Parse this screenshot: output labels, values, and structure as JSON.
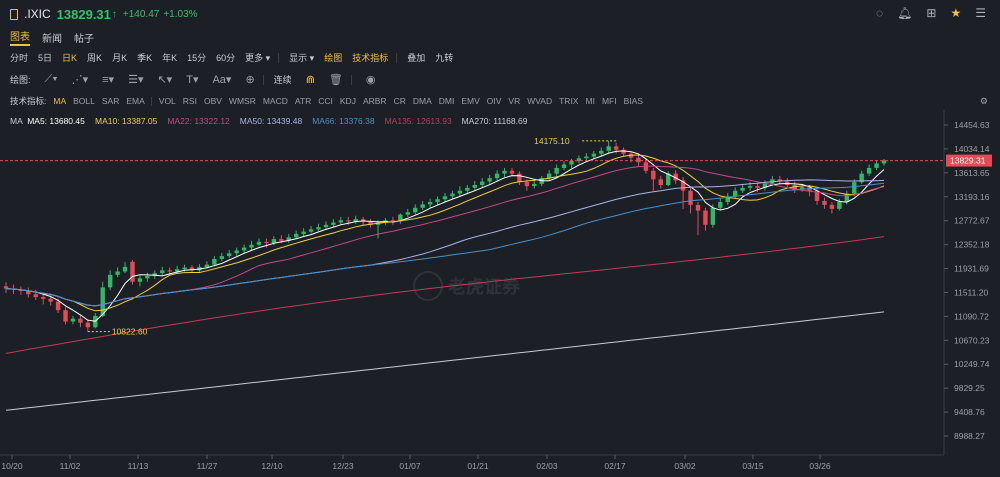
{
  "header": {
    "symbol": ".IXIC",
    "price": "13829.31",
    "arrow": "↑",
    "change": "+140.47",
    "change_pct": "+1.03%",
    "right_icons": [
      "settings-icon",
      "bell-icon",
      "grid-icon",
      "star-icon",
      "list-icon"
    ]
  },
  "tabs": [
    {
      "label": "图表",
      "active": true
    },
    {
      "label": "新闻",
      "active": false
    },
    {
      "label": "帖子",
      "active": false
    }
  ],
  "periods": [
    {
      "label": "分时",
      "active": false
    },
    {
      "label": "5日",
      "active": false
    },
    {
      "label": "日K",
      "active": true
    },
    {
      "label": "周K",
      "active": false
    },
    {
      "label": "月K",
      "active": false
    },
    {
      "label": "季K",
      "active": false
    },
    {
      "label": "年K",
      "active": false
    },
    {
      "label": "15分",
      "active": false
    },
    {
      "label": "60分",
      "active": false
    },
    {
      "label": "更多 ▾",
      "active": false
    }
  ],
  "period_extras": [
    {
      "label": "显示 ▾",
      "yellow": false
    },
    {
      "label": "绘图",
      "yellow": true
    },
    {
      "label": "技术指标",
      "yellow": true
    },
    {
      "label": "叠加",
      "yellow": false
    },
    {
      "label": "九转",
      "yellow": false
    }
  ],
  "drawbar": {
    "label": "绘图:",
    "connect_label": "连续"
  },
  "indicators": {
    "label": "技术指标:",
    "items": [
      "MA",
      "BOLL",
      "SAR",
      "EMA",
      "VOL",
      "RSI",
      "OBV",
      "WMSR",
      "MACD",
      "ATR",
      "CCI",
      "KDJ",
      "ARBR",
      "CR",
      "DMA",
      "DMI",
      "EMV",
      "OIV",
      "VR",
      "WVAD",
      "TRIX",
      "MI",
      "MFI",
      "BIAS"
    ],
    "active": "MA"
  },
  "chart_data": {
    "type": "candlestick",
    "ma_legend": [
      {
        "label": "MA",
        "value": "",
        "color": "#c9ccd2"
      },
      {
        "label": "MA5:",
        "value": "13680.45",
        "color": "#ffffff"
      },
      {
        "label": "MA10:",
        "value": "13387.05",
        "color": "#f0d040"
      },
      {
        "label": "MA22:",
        "value": "13322.12",
        "color": "#c24a8a"
      },
      {
        "label": "MA50:",
        "value": "13439.48",
        "color": "#a9b4e8"
      },
      {
        "label": "MA66:",
        "value": "13376.38",
        "color": "#4a90c8"
      },
      {
        "label": "MA135:",
        "value": "12613.93",
        "color": "#c23a5a"
      },
      {
        "label": "MA270:",
        "value": "11168.69",
        "color": "#c9ccd2"
      }
    ],
    "y_ticks": [
      "14454.63",
      "14034.14",
      "13613.65",
      "13193.16",
      "12772.67",
      "12352.18",
      "11931.69",
      "11511.20",
      "11090.72",
      "10670.23",
      "10249.74",
      "9829.25",
      "9408.76",
      "8988.27"
    ],
    "ylim": [
      8988.27,
      14454.63
    ],
    "x_ticks": [
      "10/20",
      "11/02",
      "11/13",
      "11/27",
      "12/10",
      "12/23",
      "01/07",
      "01/21",
      "02/03",
      "02/17",
      "03/02",
      "03/15",
      "03/26"
    ],
    "last_price": "13829.31",
    "high_label": "14175.10",
    "low_label": "10822.60",
    "watermark": "老虎证券",
    "candles": [
      [
        11620,
        11580,
        11690,
        11500
      ],
      [
        11580,
        11560,
        11650,
        11480
      ],
      [
        11560,
        11540,
        11620,
        11470
      ],
      [
        11540,
        11480,
        11600,
        11420
      ],
      [
        11480,
        11430,
        11560,
        11380
      ],
      [
        11430,
        11400,
        11500,
        11300
      ],
      [
        11400,
        11350,
        11460,
        11280
      ],
      [
        11350,
        11200,
        11400,
        11150
      ],
      [
        11200,
        11000,
        11250,
        10950
      ],
      [
        11000,
        11050,
        11100,
        10950
      ],
      [
        11050,
        10980,
        11120,
        10900
      ],
      [
        10980,
        10900,
        11020,
        10822
      ],
      [
        10900,
        11100,
        11150,
        10880
      ],
      [
        11100,
        11600,
        11700,
        11080
      ],
      [
        11600,
        11820,
        11900,
        11550
      ],
      [
        11820,
        11880,
        11950,
        11780
      ],
      [
        11880,
        11960,
        12050,
        11850
      ],
      [
        12050,
        11700,
        12080,
        11650
      ],
      [
        11700,
        11760,
        11820,
        11620
      ],
      [
        11760,
        11800,
        11860,
        11700
      ],
      [
        11800,
        11850,
        11900,
        11750
      ],
      [
        11850,
        11900,
        11960,
        11800
      ],
      [
        11900,
        11880,
        11950,
        11820
      ],
      [
        11880,
        11920,
        11980,
        11840
      ],
      [
        11920,
        11950,
        12000,
        11880
      ],
      [
        11950,
        11900,
        11990,
        11860
      ],
      [
        11900,
        11960,
        12010,
        11870
      ],
      [
        11960,
        12000,
        12060,
        11930
      ],
      [
        12000,
        12100,
        12150,
        11980
      ],
      [
        12100,
        12150,
        12210,
        12060
      ],
      [
        12150,
        12200,
        12260,
        12120
      ],
      [
        12200,
        12250,
        12300,
        12150
      ],
      [
        12250,
        12300,
        12350,
        12200
      ],
      [
        12300,
        12350,
        12420,
        12250
      ],
      [
        12350,
        12400,
        12460,
        12320
      ],
      [
        12400,
        12380,
        12460,
        12300
      ],
      [
        12380,
        12450,
        12500,
        12340
      ],
      [
        12450,
        12420,
        12520,
        12380
      ],
      [
        12420,
        12480,
        12540,
        12380
      ],
      [
        12480,
        12540,
        12600,
        12450
      ],
      [
        12540,
        12580,
        12640,
        12500
      ],
      [
        12580,
        12620,
        12680,
        12550
      ],
      [
        12620,
        12660,
        12720,
        12590
      ],
      [
        12660,
        12700,
        12760,
        12620
      ],
      [
        12700,
        12740,
        12800,
        12660
      ],
      [
        12740,
        12780,
        12840,
        12700
      ],
      [
        12780,
        12760,
        12840,
        12700
      ],
      [
        12760,
        12800,
        12860,
        12720
      ],
      [
        12800,
        12760,
        12840,
        12700
      ],
      [
        12760,
        12700,
        12800,
        12650
      ],
      [
        12700,
        12740,
        12780,
        12460
      ],
      [
        12740,
        12780,
        12820,
        12700
      ],
      [
        12780,
        12760,
        12840,
        12700
      ],
      [
        12760,
        12880,
        12900,
        12720
      ],
      [
        12880,
        12920,
        12980,
        12840
      ],
      [
        12920,
        13000,
        13060,
        12880
      ],
      [
        13000,
        13060,
        13120,
        12960
      ],
      [
        13060,
        13100,
        13160,
        13000
      ],
      [
        13100,
        13150,
        13200,
        13040
      ],
      [
        13150,
        13200,
        13260,
        13100
      ],
      [
        13200,
        13250,
        13300,
        13160
      ],
      [
        13250,
        13300,
        13380,
        13200
      ],
      [
        13300,
        13350,
        13400,
        13260
      ],
      [
        13350,
        13400,
        13470,
        13300
      ],
      [
        13400,
        13460,
        13520,
        13350
      ],
      [
        13460,
        13520,
        13580,
        13420
      ],
      [
        13520,
        13600,
        13660,
        13480
      ],
      [
        13600,
        13650,
        13700,
        13540
      ],
      [
        13650,
        13600,
        13700,
        13550
      ],
      [
        13600,
        13450,
        13640,
        13400
      ],
      [
        13450,
        13380,
        13500,
        13300
      ],
      [
        13380,
        13420,
        13480,
        13340
      ],
      [
        13420,
        13520,
        13560,
        13380
      ],
      [
        13520,
        13600,
        13660,
        13480
      ],
      [
        13600,
        13700,
        13760,
        13560
      ],
      [
        13700,
        13760,
        13820,
        13660
      ],
      [
        13760,
        13820,
        13860,
        13700
      ],
      [
        13820,
        13870,
        13920,
        13780
      ],
      [
        13870,
        13900,
        13960,
        13820
      ],
      [
        13900,
        13950,
        14000,
        13860
      ],
      [
        13950,
        14000,
        14060,
        13920
      ],
      [
        14000,
        14080,
        14175,
        13960
      ],
      [
        14080,
        14020,
        14140,
        13950
      ],
      [
        14020,
        13950,
        14060,
        13900
      ],
      [
        13950,
        13880,
        13990,
        13800
      ],
      [
        13880,
        13800,
        13920,
        13720
      ],
      [
        13800,
        13650,
        13860,
        13600
      ],
      [
        13650,
        13500,
        13700,
        13300
      ],
      [
        13500,
        13400,
        13560,
        13340
      ],
      [
        13400,
        13600,
        13640,
        13380
      ],
      [
        13600,
        13480,
        13660,
        13420
      ],
      [
        13480,
        13300,
        13540,
        12980
      ],
      [
        13300,
        13050,
        13360,
        12900
      ],
      [
        13050,
        12950,
        13100,
        12520
      ],
      [
        12950,
        12700,
        13000,
        12600
      ],
      [
        12700,
        13000,
        13060,
        12650
      ],
      [
        13000,
        13100,
        13160,
        12950
      ],
      [
        13100,
        13200,
        13260,
        13050
      ],
      [
        13200,
        13300,
        13360,
        13150
      ],
      [
        13300,
        13350,
        13420,
        13260
      ],
      [
        13350,
        13380,
        13450,
        13300
      ],
      [
        13380,
        13350,
        13440,
        13280
      ],
      [
        13350,
        13420,
        13480,
        13300
      ],
      [
        13420,
        13500,
        13560,
        13380
      ],
      [
        13500,
        13460,
        13560,
        13420
      ],
      [
        13460,
        13400,
        13520,
        13360
      ],
      [
        13400,
        13320,
        13460,
        13260
      ],
      [
        13320,
        13360,
        13420,
        13280
      ],
      [
        13360,
        13300,
        13400,
        13200
      ],
      [
        13300,
        13120,
        13340,
        13050
      ],
      [
        13120,
        13050,
        13180,
        12980
      ],
      [
        13050,
        12980,
        13100,
        12900
      ],
      [
        12980,
        13100,
        13160,
        12950
      ],
      [
        13100,
        13250,
        13300,
        13060
      ],
      [
        13250,
        13450,
        13500,
        13200
      ],
      [
        13450,
        13600,
        13650,
        13420
      ],
      [
        13600,
        13700,
        13760,
        13560
      ],
      [
        13700,
        13780,
        13840,
        13660
      ],
      [
        13780,
        13829,
        13860,
        13740
      ]
    ]
  }
}
